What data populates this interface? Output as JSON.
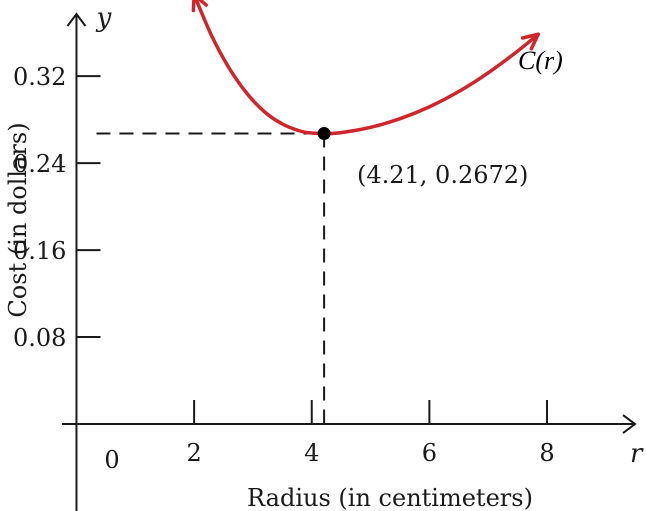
{
  "chart_data": {
    "type": "line",
    "xlabel": "Radius (in centimeters)",
    "ylabel": "Cost (in dollars)",
    "x_axis_letter": "r",
    "y_axis_letter": "y",
    "origin_label": "0",
    "xlim": [
      -1.3,
      9.7
    ],
    "ylim": [
      -0.08,
      0.39
    ],
    "x_ticks": [
      2,
      4,
      6,
      8
    ],
    "x_tick_labels": [
      "2",
      "4",
      "6",
      "8"
    ],
    "y_ticks": [
      0.08,
      0.16,
      0.24,
      0.32
    ],
    "y_tick_labels": [
      "0.08",
      "0.16",
      "0.24",
      "0.32"
    ],
    "grid": false,
    "series": [
      {
        "name": "C(r)",
        "color": "#d1252b",
        "x": [
          2.0,
          2.3,
          2.6,
          2.9,
          3.2,
          3.5,
          3.8,
          4.0,
          4.21,
          4.5,
          5.0,
          5.5,
          6.0,
          6.5,
          7.0,
          7.5,
          7.85
        ],
        "y": [
          0.395,
          0.357,
          0.327,
          0.304,
          0.287,
          0.276,
          0.2695,
          0.2677,
          0.2672,
          0.268,
          0.2729,
          0.2808,
          0.2917,
          0.3058,
          0.323,
          0.343,
          0.3585
        ]
      }
    ],
    "highlight_point": {
      "x": 4.21,
      "y": 0.2672,
      "label": "(4.21, 0.2672)",
      "color": "#000000"
    },
    "axis_color": "#1a1a1a"
  }
}
